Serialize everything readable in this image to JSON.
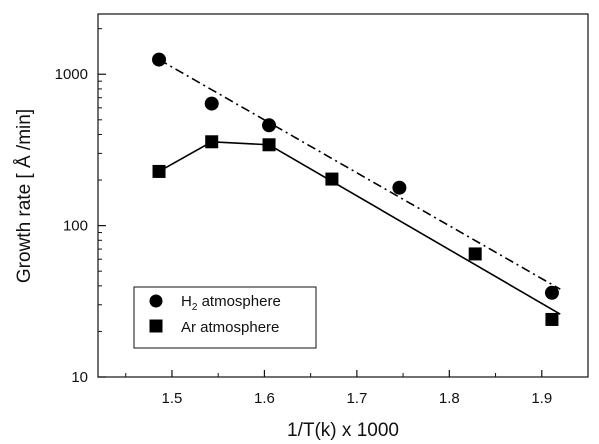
{
  "chart_data": {
    "type": "scatter",
    "title": "",
    "xlabel": "1/T(k) x 1000",
    "ylabel": "Growth rate [ Å /min]",
    "xlim": [
      1.42,
      1.95
    ],
    "ylim": [
      10,
      2500
    ],
    "yscale": "log",
    "grid": false,
    "legend_position": "bottom-left",
    "x_ticks": [
      1.5,
      1.6,
      1.7,
      1.8,
      1.9
    ],
    "x_tick_labels": [
      "1.5",
      "1.6",
      "1.7",
      "1.8",
      "1.9"
    ],
    "y_ticks": [
      10,
      100,
      1000
    ],
    "y_tick_labels": [
      "10",
      "100",
      "1000"
    ],
    "series": [
      {
        "name": "H2 atmosphere",
        "legend": {
          "main": "H",
          "sub": "2",
          "rest": " atmosphere"
        },
        "marker": "circle",
        "color": "#000000",
        "x": [
          1.486,
          1.543,
          1.605,
          1.746,
          1.911
        ],
        "y": [
          1250,
          640,
          460,
          178,
          36
        ],
        "fit_line": {
          "style": "dash-dot",
          "x": [
            1.486,
            1.92
          ],
          "y": [
            1250,
            38
          ]
        }
      },
      {
        "name": "Ar atmosphere",
        "legend": {
          "main": "Ar atmosphere",
          "sub": "",
          "rest": ""
        },
        "marker": "square",
        "color": "#000000",
        "x": [
          1.486,
          1.543,
          1.605,
          1.673,
          1.828,
          1.911
        ],
        "y": [
          228,
          358,
          342,
          203,
          65,
          24
        ],
        "connect_line": {
          "style": "solid",
          "x": [
            1.486,
            1.543,
            1.605
          ],
          "y": [
            228,
            358,
            342
          ]
        },
        "fit_line": {
          "style": "solid",
          "x": [
            1.605,
            1.92
          ],
          "y": [
            342,
            26
          ]
        }
      }
    ]
  }
}
